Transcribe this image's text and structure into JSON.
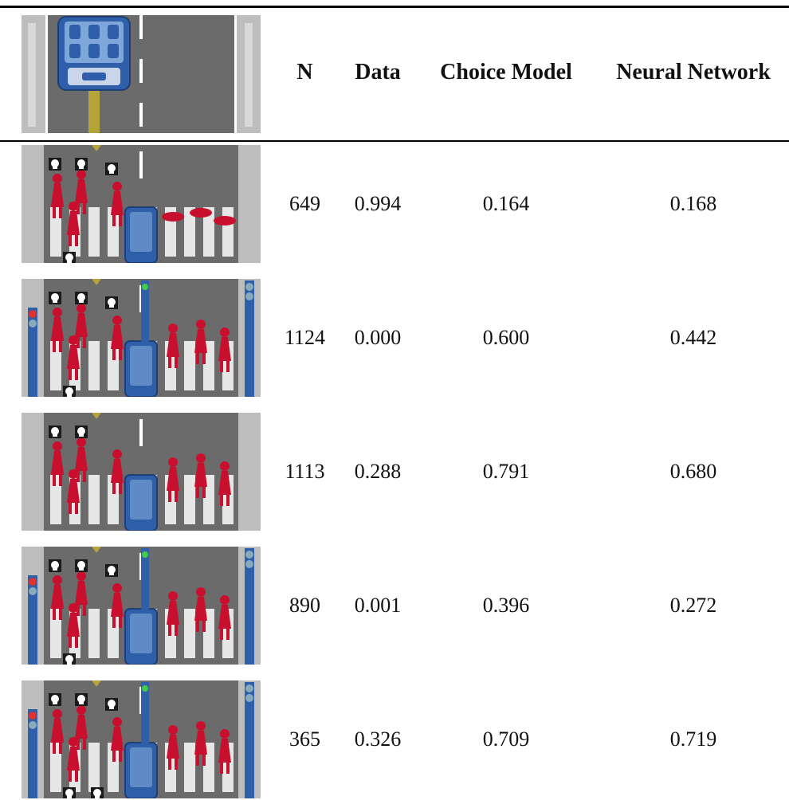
{
  "table": {
    "headers": {
      "n": "N",
      "data": "Data",
      "choice_model": "Choice Model",
      "neural_network": "Neural Network"
    },
    "rows": [
      {
        "n": "649",
        "data": "0.994",
        "choice_model": "0.164",
        "neural_network": "0.168",
        "lights": false,
        "left_skulls": 4,
        "right_skulls": 0
      },
      {
        "n": "1124",
        "data": "0.000",
        "choice_model": "0.600",
        "neural_network": "0.442",
        "lights": true,
        "left_skulls": 4,
        "right_skulls": 0
      },
      {
        "n": "1113",
        "data": "0.288",
        "choice_model": "0.791",
        "neural_network": "0.680",
        "lights": false,
        "left_skulls": 2,
        "right_skulls": 0
      },
      {
        "n": "890",
        "data": "0.001",
        "choice_model": "0.396",
        "neural_network": "0.272",
        "lights": true,
        "left_skulls": 4,
        "right_skulls": 0
      },
      {
        "n": "365",
        "data": "0.326",
        "choice_model": "0.709",
        "neural_network": "0.719",
        "lights": true,
        "left_skulls": 5,
        "right_skulls": 0
      }
    ]
  },
  "colors": {
    "road": "#6b6b6b",
    "sidewalk": "#bdbdbd",
    "lane_line": "#ffffff",
    "center_stripe": "#b5a43a",
    "vehicle": "#2f5fa8",
    "vehicle_window": "#7fa6d9",
    "pedestrian": "#c8102e",
    "skull_bg": "#1a1a1a"
  },
  "icons": {
    "header_thumbnail": "autonomous-car-top-view-icon",
    "scenario_thumbnail": "crosswalk-dilemma-scene-icon",
    "skull": "skull-icon",
    "traffic_light": "traffic-light-icon"
  }
}
